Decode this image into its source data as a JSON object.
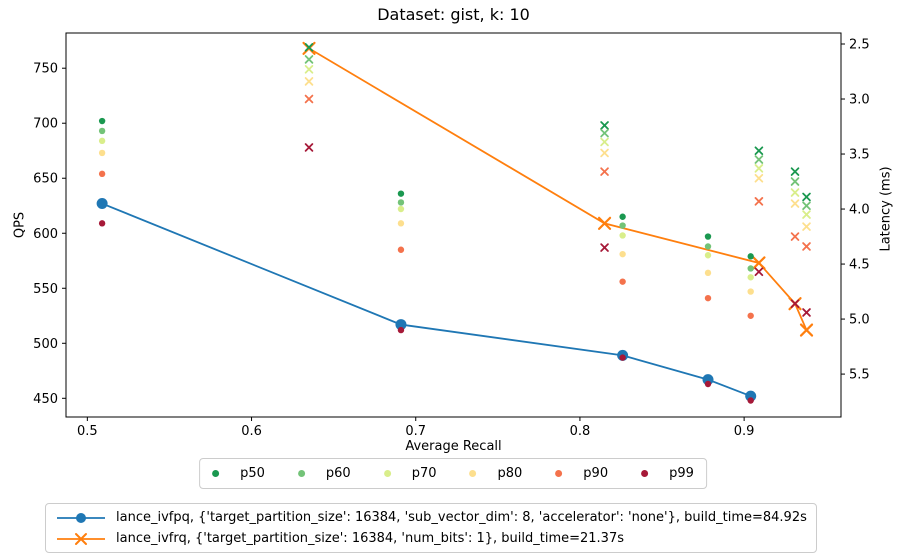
{
  "chart_data": {
    "type": "line+scatter",
    "title": "Dataset: gist, k: 10",
    "xlabel": "Average Recall",
    "ylabel_left": "QPS",
    "ylabel_right": "Latency (ms)",
    "grid": false,
    "axes": {
      "x": {
        "ticks": [
          0.5,
          0.6,
          0.7,
          0.8,
          0.9
        ],
        "range_shown": [
          0.487,
          0.959
        ]
      },
      "y_left": {
        "ticks": [
          450,
          500,
          550,
          600,
          650,
          700,
          750
        ],
        "range_shown": [
          433,
          782
        ]
      },
      "y_right": {
        "ticks": [
          2.5,
          3.0,
          3.5,
          4.0,
          4.5,
          5.0,
          5.5
        ],
        "range_shown": [
          2.4,
          5.89
        ],
        "inverted": true
      }
    },
    "percentiles": [
      {
        "label": "p50",
        "key": "p50",
        "color": "#1a9850"
      },
      {
        "label": "p60",
        "key": "p60",
        "color": "#73c378"
      },
      {
        "label": "p70",
        "key": "p70",
        "color": "#d9ee8b"
      },
      {
        "label": "p80",
        "key": "p80",
        "color": "#fddf8e"
      },
      {
        "label": "p90",
        "key": "p90",
        "color": "#f4724c"
      },
      {
        "label": "p99",
        "key": "p99",
        "color": "#a61938"
      }
    ],
    "series": [
      {
        "name": "lance_ivfpq",
        "label": "lance_ivfpq, {'target_partition_size': 16384, 'sub_vector_dim': 8, 'accelerator': 'none'}, build_time=84.92s",
        "color": "#1f77b4",
        "marker": "circle",
        "points": [
          {
            "recall": 0.509,
            "qps": 627,
            "latency": {
              "p50": 3.2,
              "p60": 3.29,
              "p70": 3.38,
              "p80": 3.49,
              "p90": 3.68,
              "p99": 4.13
            }
          },
          {
            "recall": 0.691,
            "qps": 517,
            "latency": {
              "p50": 3.86,
              "p60": 3.94,
              "p70": 4.0,
              "p80": 4.13,
              "p90": 4.37,
              "p99": 5.1
            }
          },
          {
            "recall": 0.826,
            "qps": 489,
            "latency": {
              "p50": 4.07,
              "p60": 4.15,
              "p70": 4.24,
              "p80": 4.41,
              "p90": 4.66,
              "p99": 5.35
            }
          },
          {
            "recall": 0.878,
            "qps": 467,
            "latency": {
              "p50": 4.25,
              "p60": 4.34,
              "p70": 4.42,
              "p80": 4.58,
              "p90": 4.81,
              "p99": 5.59
            }
          },
          {
            "recall": 0.904,
            "qps": 452,
            "latency": {
              "p50": 4.43,
              "p60": 4.54,
              "p70": 4.62,
              "p80": 4.75,
              "p90": 4.97,
              "p99": 5.74
            }
          }
        ]
      },
      {
        "name": "lance_ivfrq",
        "label": "lance_ivfrq, {'target_partition_size': 16384, 'num_bits': 1}, build_time=21.37s",
        "color": "#ff7f0e",
        "marker": "x",
        "points": [
          {
            "recall": 0.635,
            "qps": 768,
            "latency": {
              "p50": 2.53,
              "p60": 2.64,
              "p70": 2.73,
              "p80": 2.84,
              "p90": 3.0,
              "p99": 3.44
            }
          },
          {
            "recall": 0.815,
            "qps": 609,
            "latency": {
              "p50": 3.24,
              "p60": 3.31,
              "p70": 3.39,
              "p80": 3.49,
              "p90": 3.66,
              "p99": 4.35
            }
          },
          {
            "recall": 0.909,
            "qps": 573,
            "latency": {
              "p50": 3.47,
              "p60": 3.55,
              "p70": 3.63,
              "p80": 3.72,
              "p90": 3.93,
              "p99": 4.57
            }
          },
          {
            "recall": 0.931,
            "qps": 536,
            "latency": {
              "p50": 3.66,
              "p60": 3.75,
              "p70": 3.85,
              "p80": 3.95,
              "p90": 4.25,
              "p99": 4.86
            }
          },
          {
            "recall": 0.938,
            "qps": 512,
            "latency": {
              "p50": 3.89,
              "p60": 3.97,
              "p70": 4.05,
              "p80": 4.16,
              "p90": 4.34,
              "p99": 4.94
            }
          }
        ]
      }
    ]
  }
}
